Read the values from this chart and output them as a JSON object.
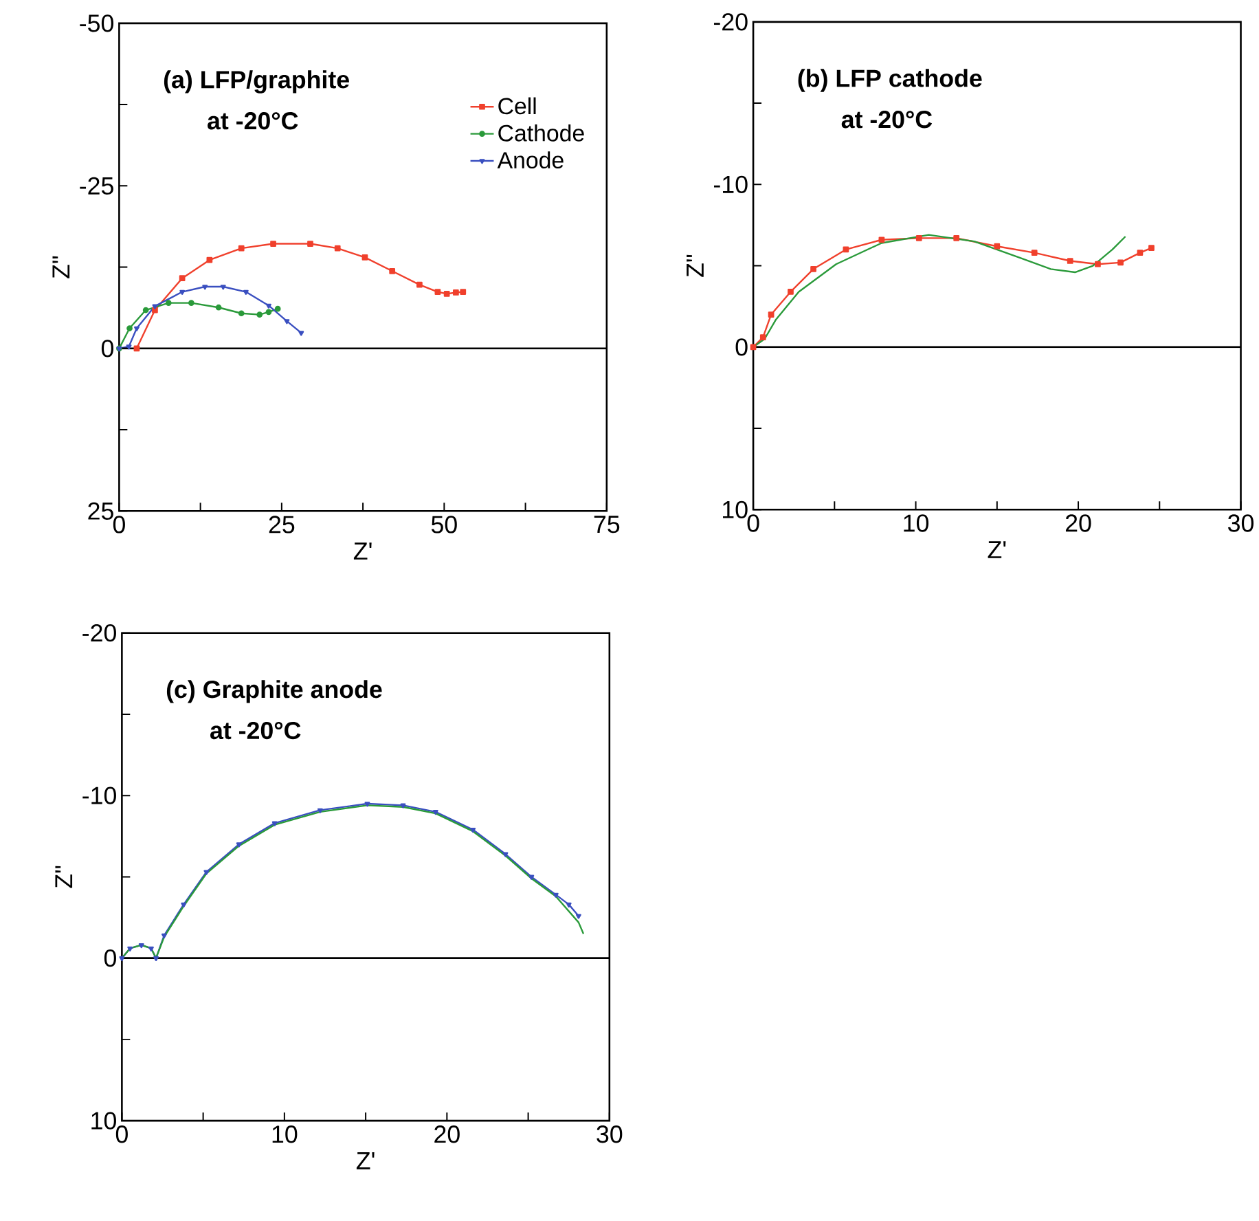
{
  "chart_data": [
    {
      "type": "line",
      "xlabel": "Z'",
      "ylabel": "Z\"",
      "annotations": [
        "(a) LFP/graphite",
        "at -20°C"
      ],
      "xlim": [
        0,
        75
      ],
      "xticks": [
        0,
        {
          "value": 12.5,
          "label": null
        },
        25,
        {
          "value": 37.5,
          "label": null
        },
        50,
        {
          "value": 62.5,
          "label": null
        },
        75
      ],
      "ylim": [
        25,
        -50
      ],
      "yticks": [
        -50,
        {
          "value": -37.5,
          "label": null
        },
        -25,
        {
          "value": -12.5,
          "label": null
        },
        0,
        {
          "value": 12.5,
          "label": null
        },
        25
      ],
      "ref_lines": [
        {
          "axis": "y",
          "value": 0
        }
      ],
      "legend": "top right",
      "series": [
        {
          "name": "Cell",
          "color": "#f0402c",
          "marker": "square",
          "x": [
            2.7,
            5.5,
            9.7,
            13.9,
            18.8,
            23.7,
            29.4,
            33.6,
            37.8,
            42.0,
            46.2,
            49.0,
            50.4,
            51.8,
            52.9
          ],
          "values": [
            0,
            -5.9,
            -10.8,
            -13.6,
            -15.4,
            -16.1,
            -16.1,
            -15.4,
            -14.0,
            -11.9,
            -9.8,
            -8.7,
            -8.4,
            -8.6,
            -8.7
          ]
        },
        {
          "name": "Cathode",
          "color": "#2a9a3a",
          "marker": "circle",
          "x": [
            0,
            1.6,
            4.1,
            7.6,
            11.1,
            15.3,
            18.8,
            21.6,
            23.0,
            24.4
          ],
          "values": [
            0,
            -3.1,
            -5.9,
            -7.0,
            -7.0,
            -6.3,
            -5.4,
            -5.2,
            -5.6,
            -6.1
          ]
        },
        {
          "name": "Anode",
          "color": "#3a4fc0",
          "marker": "triangle",
          "x": [
            0,
            1.5,
            2.7,
            5.5,
            9.7,
            13.2,
            16.0,
            19.5,
            23.0,
            25.8,
            28.0
          ],
          "values": [
            0,
            -0.3,
            -3.1,
            -6.5,
            -8.7,
            -9.5,
            -9.5,
            -8.7,
            -6.6,
            -4.2,
            -2.4
          ]
        }
      ]
    },
    {
      "type": "line",
      "xlabel": "Z'",
      "ylabel": "Z\"",
      "annotations": [
        "(b) LFP cathode",
        "at -20°C"
      ],
      "xlim": [
        0,
        30
      ],
      "xticks": [
        0,
        {
          "value": 5,
          "label": null
        },
        10,
        {
          "value": 15,
          "label": null
        },
        20,
        {
          "value": 25,
          "label": null
        },
        30
      ],
      "ylim": [
        10,
        -20
      ],
      "yticks": [
        -20,
        {
          "value": -15,
          "label": null
        },
        -10,
        {
          "value": -5,
          "label": null
        },
        0,
        {
          "value": 5,
          "label": null
        },
        10
      ],
      "ref_lines": [
        {
          "axis": "y",
          "value": 0
        }
      ],
      "series": [
        {
          "color": "#f0402c",
          "marker": "square",
          "x": [
            0,
            0.6,
            1.1,
            2.3,
            3.7,
            5.7,
            7.9,
            10.2,
            12.5,
            15.0,
            17.3,
            19.5,
            21.2,
            22.6,
            23.8,
            24.5
          ],
          "values": [
            0,
            -0.6,
            -2.0,
            -3.4,
            -4.8,
            -6.0,
            -6.6,
            -6.7,
            -6.7,
            -6.2,
            -5.8,
            -5.3,
            -5.1,
            -5.2,
            -5.8,
            -6.1
          ]
        },
        {
          "color": "#2a9a3a",
          "marker": "none",
          "x": [
            0,
            0.7,
            1.4,
            2.8,
            5.1,
            7.9,
            10.8,
            13.6,
            16.4,
            18.3,
            19.8,
            20.9,
            22.1,
            22.9
          ],
          "values": [
            0,
            -0.5,
            -1.7,
            -3.4,
            -5.1,
            -6.4,
            -6.9,
            -6.5,
            -5.5,
            -4.8,
            -4.6,
            -5.0,
            -6.0,
            -6.8
          ]
        }
      ]
    },
    {
      "type": "line",
      "xlabel": "Z'",
      "ylabel": "Z\"",
      "annotations": [
        "(c) Graphite anode",
        "at -20°C"
      ],
      "xlim": [
        0,
        30
      ],
      "xticks": [
        0,
        {
          "value": 5,
          "label": null
        },
        10,
        {
          "value": 15,
          "label": null
        },
        20,
        {
          "value": 25,
          "label": null
        },
        30
      ],
      "ylim": [
        10,
        -20
      ],
      "yticks": [
        -20,
        {
          "value": -15,
          "label": null
        },
        -10,
        {
          "value": -5,
          "label": null
        },
        0,
        {
          "value": 5,
          "label": null
        },
        10
      ],
      "ref_lines": [
        {
          "axis": "y",
          "value": 0
        }
      ],
      "series": [
        {
          "color": "#3a4fc0",
          "marker": "triangle",
          "x": [
            0,
            0.5,
            1.2,
            1.8,
            2.1,
            2.6,
            3.8,
            5.2,
            7.2,
            9.4,
            12.2,
            15.1,
            17.3,
            19.3,
            21.6,
            23.6,
            25.2,
            26.7,
            27.5,
            28.1
          ],
          "values": [
            0,
            -0.6,
            -0.8,
            -0.6,
            0,
            -1.4,
            -3.3,
            -5.3,
            -7.0,
            -8.3,
            -9.1,
            -9.5,
            -9.4,
            -9.0,
            -7.9,
            -6.4,
            -5.0,
            -3.9,
            -3.3,
            -2.6
          ]
        },
        {
          "color": "#2a9a3a",
          "marker": "none",
          "x": [
            0,
            0.5,
            1.2,
            1.8,
            2.1,
            2.6,
            3.8,
            5.2,
            7.2,
            9.4,
            12.2,
            15.1,
            17.3,
            19.3,
            21.6,
            23.6,
            25.2,
            26.7,
            28.1,
            28.4
          ],
          "values": [
            0,
            -0.6,
            -0.8,
            -0.6,
            0,
            -1.3,
            -3.2,
            -5.2,
            -6.9,
            -8.2,
            -9.0,
            -9.4,
            -9.3,
            -8.9,
            -7.8,
            -6.3,
            -4.9,
            -3.8,
            -2.2,
            -1.5
          ]
        }
      ]
    }
  ]
}
